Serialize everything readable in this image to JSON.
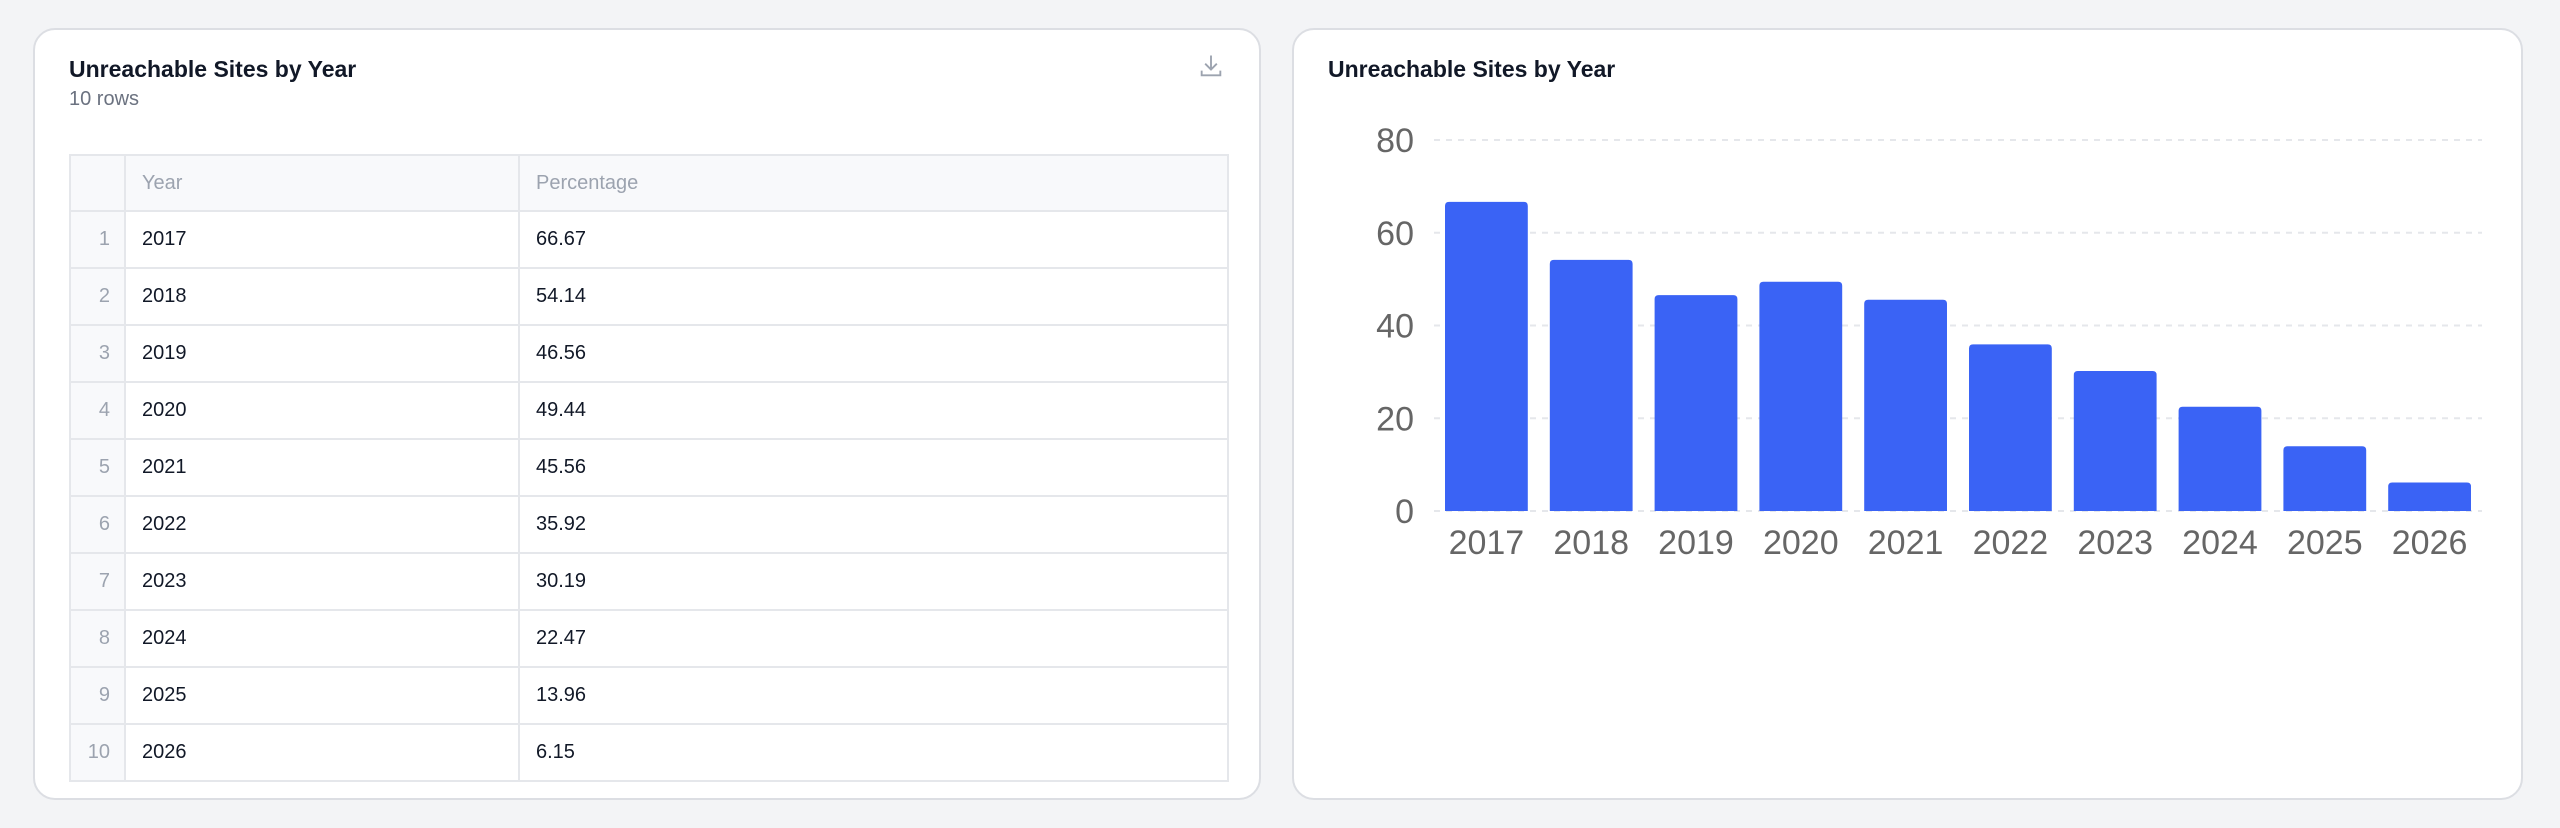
{
  "table_card": {
    "title": "Unreachable Sites by Year",
    "row_count": "10 rows",
    "download_icon": "download-icon",
    "columns": [
      "",
      "Year",
      "Percentage"
    ],
    "rows": [
      [
        "1",
        "2017",
        "66.67"
      ],
      [
        "2",
        "2018",
        "54.14"
      ],
      [
        "3",
        "2019",
        "46.56"
      ],
      [
        "4",
        "2020",
        "49.44"
      ],
      [
        "5",
        "2021",
        "45.56"
      ],
      [
        "6",
        "2022",
        "35.92"
      ],
      [
        "7",
        "2023",
        "30.19"
      ],
      [
        "8",
        "2024",
        "22.47"
      ],
      [
        "9",
        "2025",
        "13.96"
      ],
      [
        "10",
        "2026",
        "6.15"
      ]
    ]
  },
  "chart_card": {
    "title": "Unreachable Sites by Year"
  },
  "chart_data": {
    "type": "bar",
    "title": "Unreachable Sites by Year",
    "categories": [
      "2017",
      "2018",
      "2019",
      "2020",
      "2021",
      "2022",
      "2023",
      "2024",
      "2025",
      "2026"
    ],
    "values": [
      66.67,
      54.14,
      46.56,
      49.44,
      45.56,
      35.92,
      30.19,
      22.47,
      13.96,
      6.15
    ],
    "yticks": [
      "0",
      "20",
      "40",
      "60",
      "80"
    ],
    "ylim": [
      0,
      80
    ],
    "grid": true,
    "xlabel": "",
    "ylabel": "",
    "bar_color": "#3a63f5"
  }
}
